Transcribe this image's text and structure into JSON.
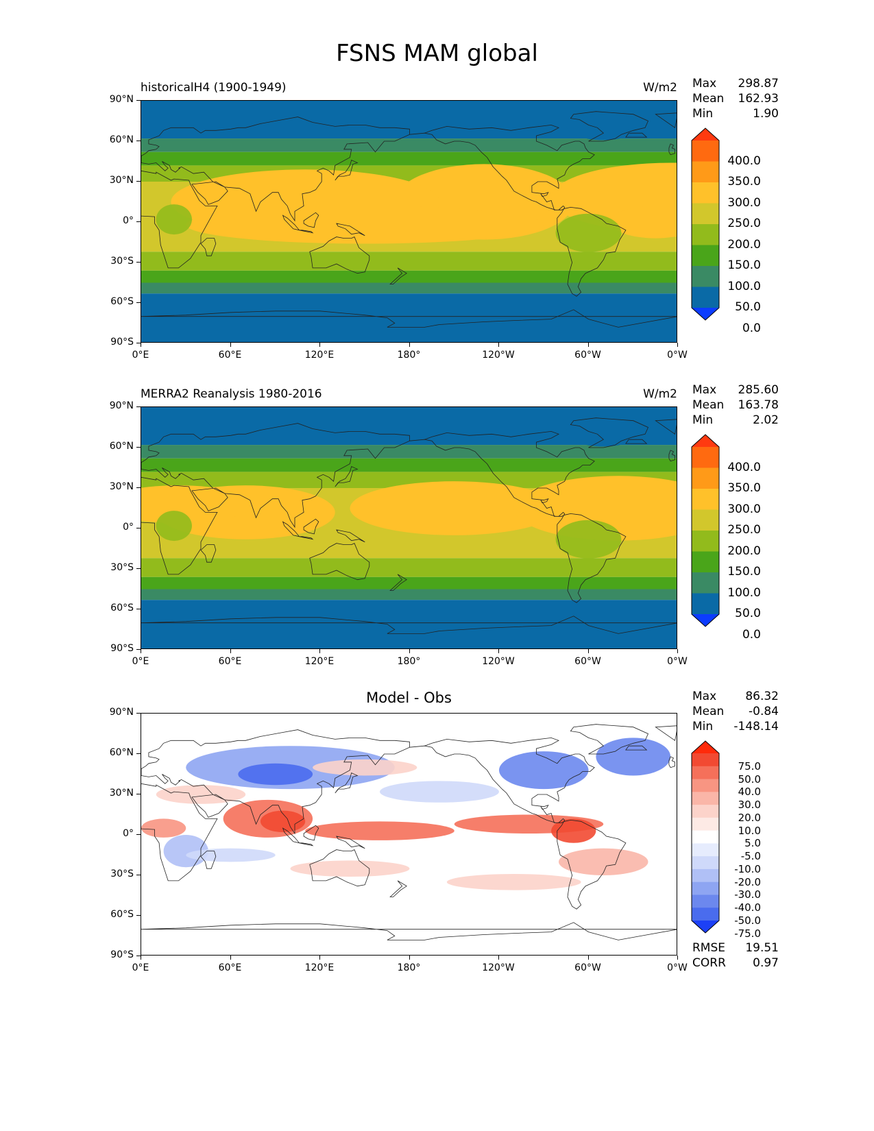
{
  "title": "FSNS MAM global",
  "axes": {
    "lat_ticks": [
      "90°N",
      "60°N",
      "30°N",
      "0°",
      "30°S",
      "60°S",
      "90°S"
    ],
    "lon_ticks": [
      "0°E",
      "60°E",
      "120°E",
      "180°",
      "120°W",
      "60°W",
      "0°W"
    ]
  },
  "panels": [
    {
      "left_title": "historicalH4 (1900-1949)",
      "units": "W/m2",
      "stats": {
        "max_label": "Max",
        "max": "298.87",
        "mean_label": "Mean",
        "mean": "162.93",
        "min_label": "Min",
        "min": "1.90"
      },
      "colorbar": {
        "labels": [
          "400.0",
          "350.0",
          "300.0",
          "250.0",
          "200.0",
          "150.0",
          "100.0",
          "50.0",
          "0.0"
        ],
        "colors": [
          "#ff3a10",
          "#ff6a10",
          "#ff9a18",
          "#ffc12a",
          "#d2c72c",
          "#92bb1c",
          "#4aa51a",
          "#3a8a64",
          "#0a6aa6",
          "#0c3cff"
        ]
      }
    },
    {
      "left_title": "MERRA2 Reanalysis 1980-2016",
      "units": "W/m2",
      "stats": {
        "max_label": "Max",
        "max": "285.60",
        "mean_label": "Mean",
        "mean": "163.78",
        "min_label": "Min",
        "min": "2.02"
      },
      "colorbar": {
        "labels": [
          "400.0",
          "350.0",
          "300.0",
          "250.0",
          "200.0",
          "150.0",
          "100.0",
          "50.0",
          "0.0"
        ],
        "colors": [
          "#ff3a10",
          "#ff6a10",
          "#ff9a18",
          "#ffc12a",
          "#d2c72c",
          "#92bb1c",
          "#4aa51a",
          "#3a8a64",
          "#0a6aa6",
          "#0c3cff"
        ]
      }
    },
    {
      "center_title": "Model - Obs",
      "stats": {
        "max_label": "Max",
        "max": "86.32",
        "mean_label": "Mean",
        "mean": "-0.84",
        "min_label": "Min",
        "min": "-148.14"
      },
      "metrics": {
        "rmse_label": "RMSE",
        "rmse": "19.51",
        "corr_label": "CORR",
        "corr": "0.97"
      },
      "colorbar": {
        "labels": [
          "75.0",
          "50.0",
          "40.0",
          "30.0",
          "20.0",
          "10.0",
          "5.0",
          "-5.0",
          "-10.0",
          "-20.0",
          "-30.0",
          "-40.0",
          "-50.0",
          "-75.0"
        ],
        "colors": [
          "#ff2a0a",
          "#f24a32",
          "#f5705a",
          "#f89582",
          "#fab6a8",
          "#fcd3ca",
          "#fdeae5",
          "#ffffff",
          "#e6ecfd",
          "#cfd9fa",
          "#b0c0f6",
          "#8ea5f2",
          "#6c88ee",
          "#4a6cee",
          "#1c40f6"
        ]
      }
    }
  ]
}
